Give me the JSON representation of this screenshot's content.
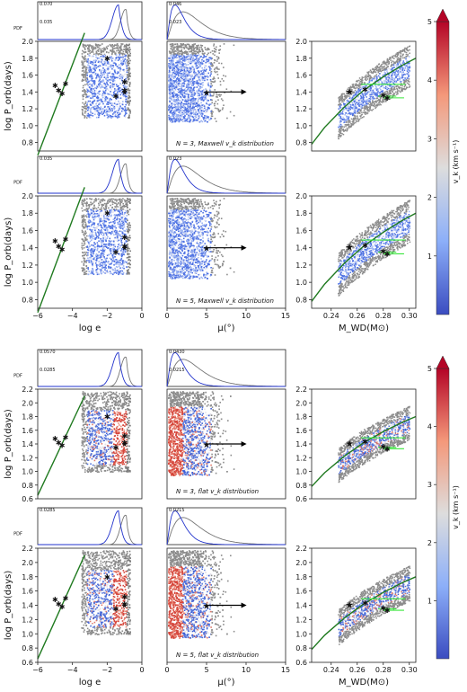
{
  "chart_data": {
    "type": "scatter",
    "panel_labels": [
      "N = 3, Maxwell v_k distribution",
      "N = 5, Maxwell v_k distribution",
      "N = 3, flat v_k distribution",
      "N = 5, flat v_k distribution"
    ],
    "block_variants": [
      {
        "name": "N = 3, Maxwell v_k distribution",
        "N": "3",
        "dist": "Maxwell",
        "coloring": "maxwell",
        "pdf_ticks_left": [
          "0.070",
          "0.035"
        ],
        "pdf_ticks_mid": [
          "0.046",
          "0.023"
        ]
      },
      {
        "name": "N = 5, Maxwell v_k distribution",
        "N": "5",
        "dist": "Maxwell",
        "coloring": "maxwell",
        "pdf_ticks_left": [
          "0.035"
        ],
        "pdf_ticks_mid": [
          "0.023"
        ]
      },
      {
        "name": "N = 3, flat v_k distribution",
        "N": "3",
        "dist": "flat",
        "coloring": "flat",
        "pdf_ticks_left": [
          "0.0570",
          "0.0285"
        ],
        "pdf_ticks_mid": [
          "0.0430",
          "0.0215"
        ]
      },
      {
        "name": "N = 5, flat v_k distribution",
        "N": "5",
        "dist": "flat",
        "coloring": "flat",
        "pdf_ticks_left": [
          "0.0285"
        ],
        "pdf_ticks_mid": [
          "0.0215"
        ]
      }
    ],
    "axes": {
      "log_e": {
        "label": "log e",
        "range": [
          -6,
          0
        ],
        "ticks": [
          -6,
          -4,
          -2,
          0
        ]
      },
      "mu": {
        "label": "μ(°)",
        "range": [
          0,
          15
        ],
        "ticks": [
          0,
          5,
          10,
          15
        ]
      },
      "mwd": {
        "label": "M_WD(M⊙)",
        "range": [
          0.225,
          0.305
        ],
        "ticks": [
          0.24,
          0.26,
          0.28,
          0.3
        ]
      },
      "logP_maxwell": {
        "label": "log P_orb(days)",
        "range": [
          0.7,
          2.0
        ],
        "ticks": [
          0.8,
          1.0,
          1.2,
          1.4,
          1.6,
          1.8,
          2.0
        ]
      },
      "logP_flat": {
        "label": "log P_orb(days)",
        "range": [
          0.6,
          2.2
        ],
        "ticks": [
          0.6,
          0.8,
          1.0,
          1.2,
          1.4,
          1.6,
          1.8,
          2.0,
          2.2
        ]
      },
      "pdf_label": "PDF"
    },
    "colorbar": {
      "label": "v_k (km s⁻¹)",
      "min": 0,
      "max": 5,
      "ticks": [
        1,
        2,
        3,
        4,
        5
      ],
      "colormap": "coolwarm"
    },
    "observed_green_stars": {
      "log_e": [
        -5.0,
        -4.8,
        -4.4,
        -4.6,
        -2.0,
        -1.0,
        -1.0,
        -1.5
      ],
      "logP": [
        1.48,
        1.42,
        1.5,
        1.38,
        1.8,
        1.52,
        1.42,
        1.35
      ]
    },
    "target_black_star": {
      "log_e": -1.0,
      "mu": 5.0,
      "mwd": 0.254,
      "logP": 1.4,
      "mu_lower_limit_arrow_to": 9.5
    },
    "green_line_log_e": {
      "x": [
        -6.0,
        -3.3
      ],
      "y": [
        0.65,
        2.1
      ]
    },
    "green_curve_mwd": {
      "x": [
        0.225,
        0.235,
        0.25,
        0.265,
        0.28,
        0.295,
        0.305
      ],
      "y": [
        0.78,
        0.98,
        1.22,
        1.42,
        1.58,
        1.72,
        1.8
      ]
    },
    "green_errorbars_mwd": [
      {
        "y": 1.49,
        "x_range": [
          0.263,
          0.297
        ]
      },
      {
        "y": 1.35,
        "x_range": [
          0.276,
          0.29
        ]
      },
      {
        "y": 1.33,
        "x_range": [
          0.28,
          0.296
        ]
      }
    ],
    "mwd_green_points": {
      "x": [
        0.266,
        0.28,
        0.283
      ],
      "y": [
        1.43,
        1.36,
        1.33
      ]
    },
    "pdf_log_e_peaks": {
      "blue": -1.35,
      "gray": -0.95
    },
    "pdf_mu_peaks": {
      "blue": 1.0,
      "gray": 2.0
    },
    "colors": {
      "gray": "#8c8c8c",
      "blue": "#3d5fd6",
      "red": "#c6352f",
      "green_star": "#39e63b",
      "green_line": "#1f7a1f",
      "arrow": "#000000"
    }
  }
}
